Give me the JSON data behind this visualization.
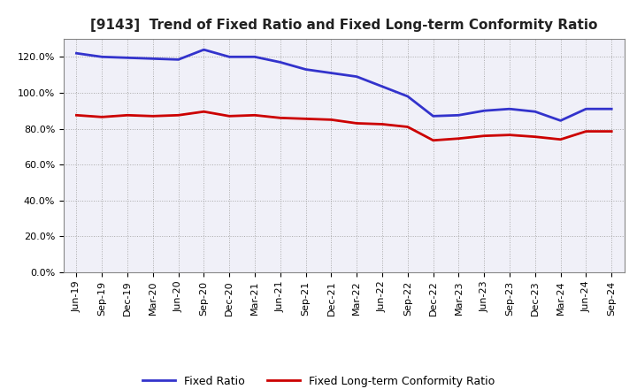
{
  "title": "[9143]  Trend of Fixed Ratio and Fixed Long-term Conformity Ratio",
  "x_labels": [
    "Jun-19",
    "Sep-19",
    "Dec-19",
    "Mar-20",
    "Jun-20",
    "Sep-20",
    "Dec-20",
    "Mar-21",
    "Jun-21",
    "Sep-21",
    "Dec-21",
    "Mar-22",
    "Jun-22",
    "Sep-22",
    "Dec-22",
    "Mar-23",
    "Jun-23",
    "Sep-23",
    "Dec-23",
    "Mar-24",
    "Jun-24",
    "Sep-24"
  ],
  "fixed_ratio": [
    122.0,
    120.0,
    119.5,
    119.0,
    118.5,
    124.0,
    120.0,
    120.0,
    117.0,
    113.0,
    111.0,
    109.0,
    103.5,
    98.0,
    87.0,
    87.5,
    90.0,
    91.0,
    89.5,
    84.5,
    91.0,
    91.0
  ],
  "fixed_lt_ratio": [
    87.5,
    86.5,
    87.5,
    87.0,
    87.5,
    89.5,
    87.0,
    87.5,
    86.0,
    85.5,
    85.0,
    83.0,
    82.5,
    81.0,
    73.5,
    74.5,
    76.0,
    76.5,
    75.5,
    74.0,
    78.5,
    78.5
  ],
  "fixed_ratio_color": "#3333cc",
  "fixed_lt_ratio_color": "#cc0000",
  "ylim": [
    0,
    130
  ],
  "yticks": [
    0,
    20,
    40,
    60,
    80,
    100,
    120
  ],
  "background_color": "#ffffff",
  "plot_bg_color": "#f0f0f8",
  "grid_color": "#aaaaaa",
  "title_fontsize": 11,
  "legend_fixed_ratio": "Fixed Ratio",
  "legend_fixed_lt_ratio": "Fixed Long-term Conformity Ratio"
}
